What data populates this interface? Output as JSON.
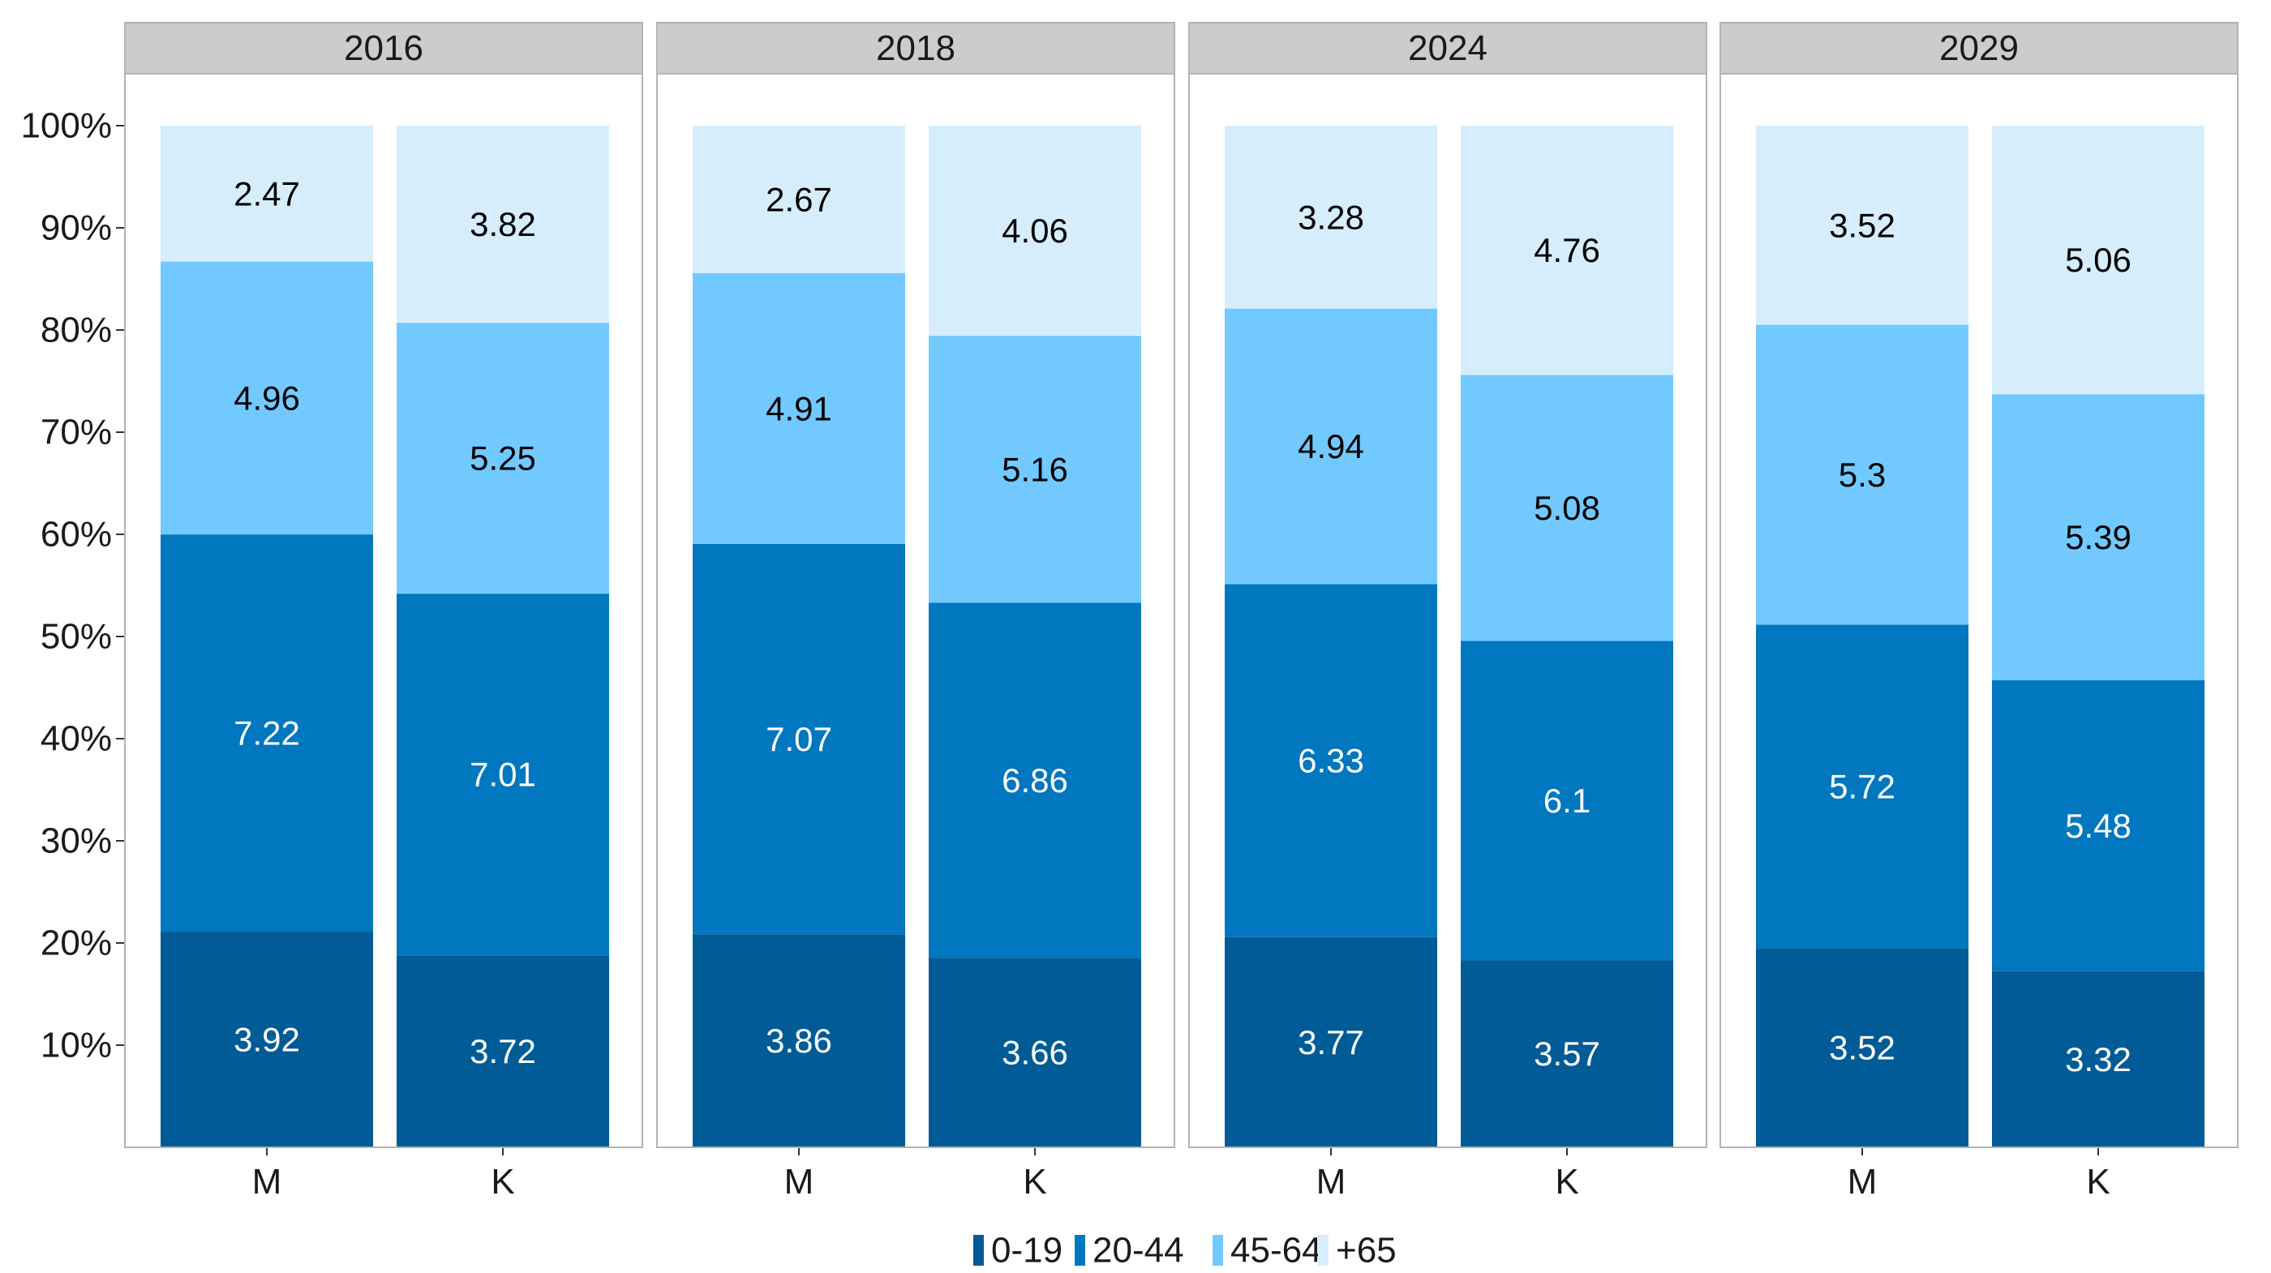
{
  "chart_data": {
    "type": "bar",
    "stacked": "percent",
    "facets": [
      "2016",
      "2018",
      "2024",
      "2029"
    ],
    "categories": [
      "M",
      "K"
    ],
    "series": [
      {
        "name": "0-19",
        "color": "#005b96",
        "values": [
          [
            3.92,
            3.72
          ],
          [
            3.86,
            3.66
          ],
          [
            3.77,
            3.57
          ],
          [
            3.52,
            3.32
          ]
        ]
      },
      {
        "name": "20-44",
        "color": "#0077bf",
        "values": [
          [
            7.22,
            7.01
          ],
          [
            7.07,
            6.86
          ],
          [
            6.33,
            6.1
          ],
          [
            5.72,
            5.48
          ]
        ]
      },
      {
        "name": "45-64",
        "color": "#72c9ff",
        "values": [
          [
            4.96,
            5.25
          ],
          [
            4.91,
            5.16
          ],
          [
            4.94,
            5.08
          ],
          [
            5.3,
            5.39
          ]
        ]
      },
      {
        "name": "+65",
        "color": "#d6eefc",
        "values": [
          [
            2.47,
            3.82
          ],
          [
            2.67,
            4.06
          ],
          [
            3.28,
            4.76
          ],
          [
            3.52,
            5.06
          ]
        ]
      }
    ],
    "data_labels": [
      [
        [
          "3.92",
          "3.72"
        ],
        [
          "3.86",
          "3.66"
        ],
        [
          "3.77",
          "3.57"
        ],
        [
          "3.52",
          "3.32"
        ]
      ],
      [
        [
          "7.22",
          "7.01"
        ],
        [
          "7.07",
          "6.86"
        ],
        [
          "6.33",
          "6.1"
        ],
        [
          "5.72",
          "5.48"
        ]
      ],
      [
        [
          "4.96",
          "5.25"
        ],
        [
          "4.91",
          "5.16"
        ],
        [
          "4.94",
          "5.08"
        ],
        [
          "5.3",
          "5.39"
        ]
      ],
      [
        [
          "2.47",
          "3.82"
        ],
        [
          "2.67",
          "4.06"
        ],
        [
          "3.28",
          "4.76"
        ],
        [
          "3.52",
          "5.06"
        ]
      ]
    ],
    "label_colors": [
      "#ffffff",
      "#ffffff",
      "#000000",
      "#000000"
    ],
    "y_ticks": [
      {
        "value": 10,
        "label": "10%"
      },
      {
        "value": 20,
        "label": "20%"
      },
      {
        "value": 30,
        "label": "30%"
      },
      {
        "value": 40,
        "label": "40%"
      },
      {
        "value": 50,
        "label": "50%"
      },
      {
        "value": 60,
        "label": "60%"
      },
      {
        "value": 70,
        "label": "70%"
      },
      {
        "value": 80,
        "label": "80%"
      },
      {
        "value": 90,
        "label": "90%"
      },
      {
        "value": 100,
        "label": "100%"
      }
    ],
    "ylim": [
      0,
      100
    ],
    "grid": false,
    "legend_position": "bottom",
    "title": "",
    "xlabel": "",
    "ylabel": ""
  }
}
